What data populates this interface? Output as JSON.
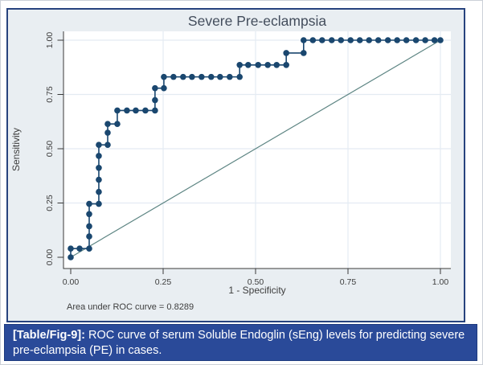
{
  "chart_data": {
    "type": "line",
    "subtype": "roc-step-curve",
    "title": "Severe Pre-eclampsia",
    "xlabel": "1 - Specificity",
    "ylabel": "Sensitivity",
    "xlim": [
      0,
      1
    ],
    "ylim": [
      0,
      1
    ],
    "grid": true,
    "tick_values": [
      0,
      0.25,
      0.5,
      0.75,
      1.0
    ],
    "x_ticks": [
      "0.00",
      "0.25",
      "0.50",
      "0.75",
      "1.00"
    ],
    "y_ticks": [
      "0.00",
      "0.25",
      "0.50",
      "0.75",
      "1.00"
    ],
    "annotation": "Area under ROC curve = 0.8289",
    "auc": 0.8289,
    "series": [
      {
        "name": "ROC curve",
        "style": "step-with-markers",
        "color": "#1a476f",
        "points": [
          [
            0.0,
            0.0
          ],
          [
            0.0,
            0.04
          ],
          [
            0.024,
            0.04
          ],
          [
            0.05,
            0.04
          ],
          [
            0.05,
            0.096
          ],
          [
            0.05,
            0.143
          ],
          [
            0.05,
            0.199
          ],
          [
            0.05,
            0.246
          ],
          [
            0.076,
            0.246
          ],
          [
            0.076,
            0.301
          ],
          [
            0.076,
            0.357
          ],
          [
            0.076,
            0.412
          ],
          [
            0.076,
            0.467
          ],
          [
            0.076,
            0.518
          ],
          [
            0.1,
            0.518
          ],
          [
            0.1,
            0.574
          ],
          [
            0.1,
            0.614
          ],
          [
            0.126,
            0.614
          ],
          [
            0.126,
            0.676
          ],
          [
            0.152,
            0.676
          ],
          [
            0.176,
            0.676
          ],
          [
            0.202,
            0.676
          ],
          [
            0.228,
            0.676
          ],
          [
            0.228,
            0.724
          ],
          [
            0.228,
            0.779
          ],
          [
            0.252,
            0.779
          ],
          [
            0.252,
            0.831
          ],
          [
            0.278,
            0.831
          ],
          [
            0.304,
            0.831
          ],
          [
            0.328,
            0.831
          ],
          [
            0.354,
            0.831
          ],
          [
            0.38,
            0.831
          ],
          [
            0.404,
            0.831
          ],
          [
            0.43,
            0.831
          ],
          [
            0.457,
            0.831
          ],
          [
            0.457,
            0.886
          ],
          [
            0.48,
            0.886
          ],
          [
            0.507,
            0.886
          ],
          [
            0.533,
            0.886
          ],
          [
            0.557,
            0.886
          ],
          [
            0.583,
            0.886
          ],
          [
            0.583,
            0.941
          ],
          [
            0.63,
            0.941
          ],
          [
            0.63,
            1.0
          ],
          [
            0.655,
            1.0
          ],
          [
            0.68,
            1.0
          ],
          [
            0.706,
            1.0
          ],
          [
            0.731,
            1.0
          ],
          [
            0.757,
            1.0
          ],
          [
            0.782,
            1.0
          ],
          [
            0.807,
            1.0
          ],
          [
            0.832,
            1.0
          ],
          [
            0.858,
            1.0
          ],
          [
            0.883,
            1.0
          ],
          [
            0.908,
            1.0
          ],
          [
            0.934,
            1.0
          ],
          [
            0.959,
            1.0
          ],
          [
            0.984,
            1.0
          ],
          [
            1.0,
            1.0
          ]
        ]
      },
      {
        "name": "Reference diagonal",
        "style": "line",
        "color": "#5d8583",
        "points": [
          [
            0,
            0
          ],
          [
            1,
            1
          ]
        ]
      }
    ],
    "legend_position": "none"
  },
  "caption": {
    "label": "[Table/Fig-9]:",
    "text": " ROC curve of serum Soluble Endoglin (sEng) levels for predicting severe pre-eclampsia (PE) in cases."
  },
  "colors": {
    "figure_bg": "#e9eef2",
    "plot_bg": "#ffffff",
    "grid": "#e4ebf2",
    "axis": "#3a3a3a",
    "roc": "#1a476f",
    "reference": "#5d8583",
    "panel_border": "#27437e",
    "caption_bg": "#2a4a99",
    "caption_text": "#ffffff"
  }
}
